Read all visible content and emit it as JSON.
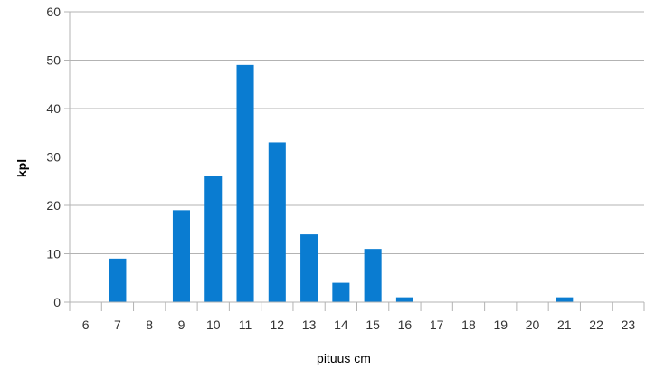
{
  "chart_data": {
    "type": "bar",
    "title": "",
    "xlabel": "pituus cm",
    "ylabel": "kpl",
    "categories": [
      "6",
      "7",
      "8",
      "9",
      "10",
      "11",
      "12",
      "13",
      "14",
      "15",
      "16",
      "17",
      "18",
      "19",
      "20",
      "21",
      "22",
      "23"
    ],
    "values": [
      0,
      9,
      0,
      19,
      26,
      49,
      33,
      14,
      4,
      11,
      1,
      0,
      0,
      0,
      0,
      1,
      0,
      0
    ],
    "ylim": [
      0,
      60
    ],
    "yticks": [
      "0",
      "10",
      "20",
      "30",
      "40",
      "50",
      "60"
    ],
    "grid": true,
    "legend": "none",
    "colors": {
      "bar": "#0a7cd1",
      "grid": "#b3b3b3",
      "axis": "#b3b3b3"
    }
  }
}
